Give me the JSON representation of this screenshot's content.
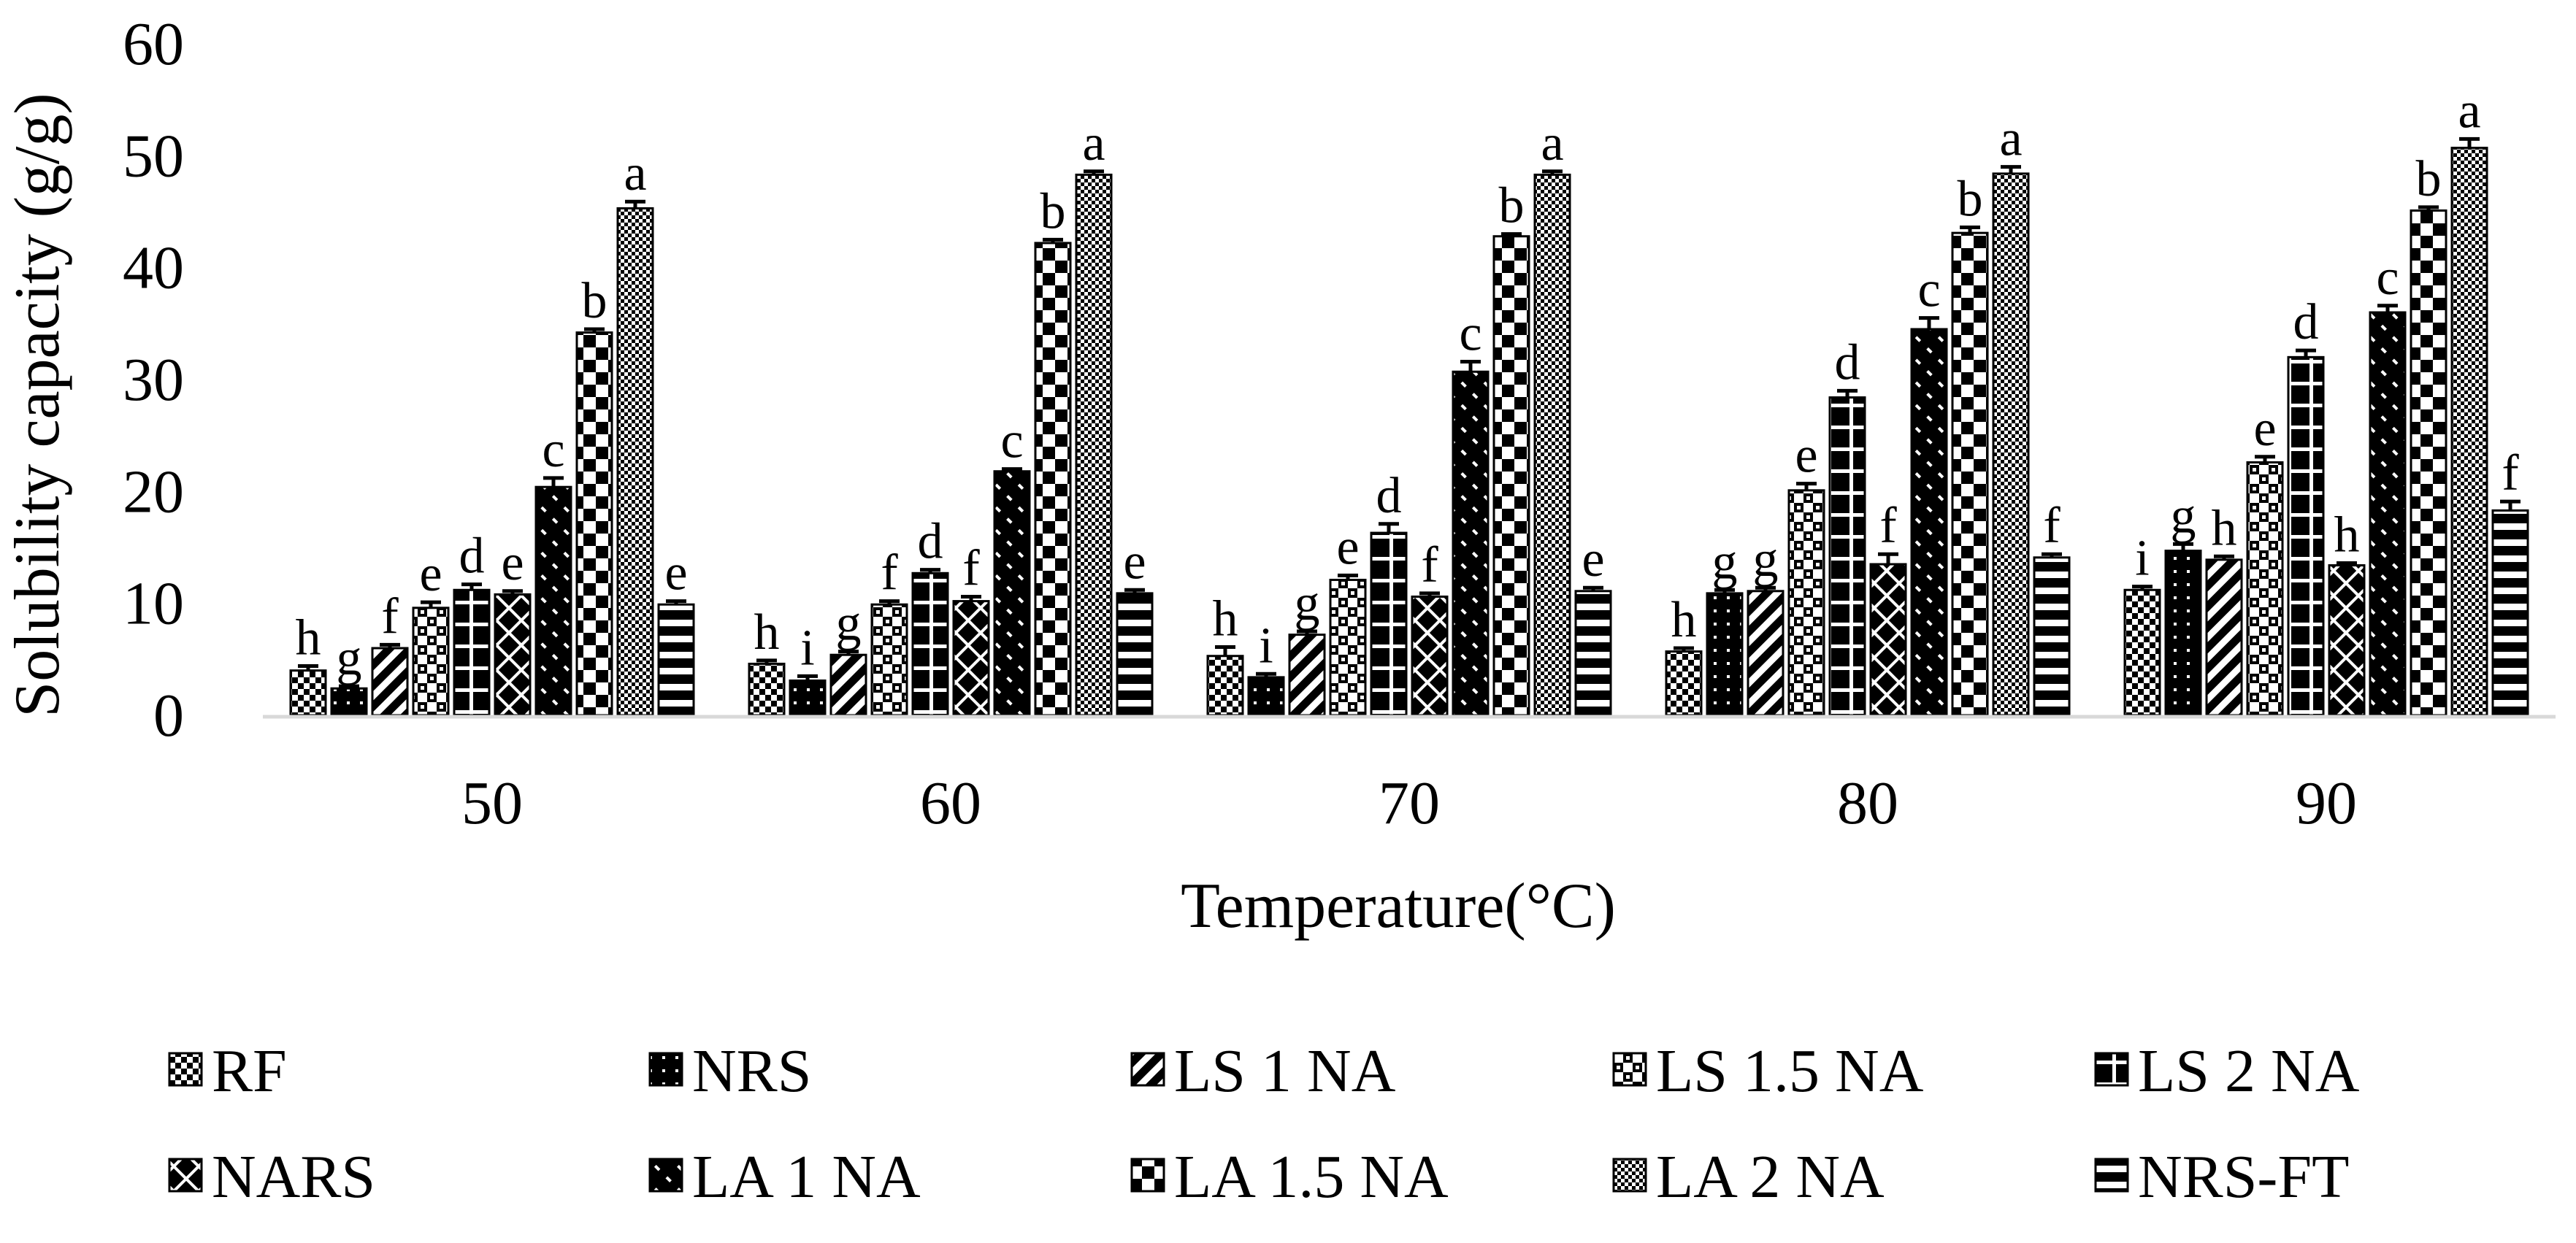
{
  "chart_data": {
    "type": "bar",
    "title": "",
    "xlabel": "Temperature(°C)",
    "ylabel": "Solubility capacity (g/g)",
    "ylim": [
      0,
      60
    ],
    "yticks": [
      "0",
      "10",
      "20",
      "30",
      "40",
      "50",
      "60"
    ],
    "categories": [
      "50",
      "60",
      "70",
      "80",
      "90"
    ],
    "legend_position": "bottom",
    "series": [
      {
        "name": "RF",
        "pattern": "checker",
        "values": [
          4,
          4.6,
          5.3,
          5.7,
          11.2
        ],
        "errors": [
          0.4,
          0.3,
          0.8,
          0.3,
          0.3
        ],
        "labels": [
          "h",
          "h",
          "h",
          "h",
          "i"
        ]
      },
      {
        "name": "NRS",
        "pattern": "dots",
        "values": [
          2.4,
          3.1,
          3.4,
          10.9,
          14.7
        ],
        "errors": [
          0.2,
          0.4,
          0.3,
          0.3,
          0.6
        ],
        "labels": [
          "g",
          "i",
          "i",
          "g",
          "g"
        ]
      },
      {
        "name": "LS 1 NA",
        "pattern": "diagonal",
        "values": [
          6,
          5.4,
          7.2,
          11.1,
          13.9
        ],
        "errors": [
          0.3,
          0.3,
          0.3,
          0.3,
          0.3
        ],
        "labels": [
          "f",
          "g",
          "g",
          "g",
          "h"
        ]
      },
      {
        "name": "LS 1.5 NA",
        "pattern": "bigchecker",
        "values": [
          9.6,
          9.9,
          12.1,
          20.1,
          22.6
        ],
        "errors": [
          0.5,
          0.3,
          0.4,
          0.6,
          0.5
        ],
        "labels": [
          "e",
          "f",
          "e",
          "e",
          "e"
        ]
      },
      {
        "name": "LS 2 NA",
        "pattern": "cross",
        "values": [
          11.2,
          12.7,
          16.3,
          28.4,
          32
        ],
        "errors": [
          0.5,
          0.3,
          0.8,
          0.6,
          0.6
        ],
        "labels": [
          "d",
          "d",
          "d",
          "d",
          "d"
        ]
      },
      {
        "name": "NARS",
        "pattern": "zigzag",
        "values": [
          10.8,
          10.2,
          10.6,
          13.5,
          13.4
        ],
        "errors": [
          0.3,
          0.4,
          0.3,
          0.9,
          0.2
        ],
        "labels": [
          "e",
          "f",
          "f",
          "f",
          "h"
        ]
      },
      {
        "name": "LA 1 NA",
        "pattern": "wave",
        "values": [
          20.4,
          21.8,
          30.7,
          34.5,
          36
        ],
        "errors": [
          0.8,
          0.2,
          0.9,
          1,
          0.6
        ],
        "labels": [
          "c",
          "c",
          "c",
          "c",
          "c"
        ]
      },
      {
        "name": "LA 1.5 NA",
        "pattern": "blocks",
        "values": [
          34.2,
          42.2,
          42.8,
          43.1,
          45.1
        ],
        "errors": [
          0.3,
          0.3,
          0.2,
          0.5,
          0.3
        ],
        "labels": [
          "b",
          "b",
          "b",
          "b",
          "b"
        ]
      },
      {
        "name": "LA 2 NA",
        "pattern": "finechecker",
        "values": [
          45.3,
          48.3,
          48.3,
          48.4,
          50.7
        ],
        "errors": [
          0.6,
          0.3,
          0.3,
          0.6,
          0.8
        ],
        "labels": [
          "a",
          "a",
          "a",
          "a",
          "a"
        ]
      },
      {
        "name": "NRS-FT",
        "pattern": "hstripes",
        "values": [
          9.9,
          10.9,
          11.1,
          14.1,
          18.3
        ],
        "errors": [
          0.3,
          0.3,
          0.3,
          0.3,
          0.8
        ],
        "labels": [
          "e",
          "e",
          "e",
          "f",
          "f"
        ]
      }
    ]
  }
}
